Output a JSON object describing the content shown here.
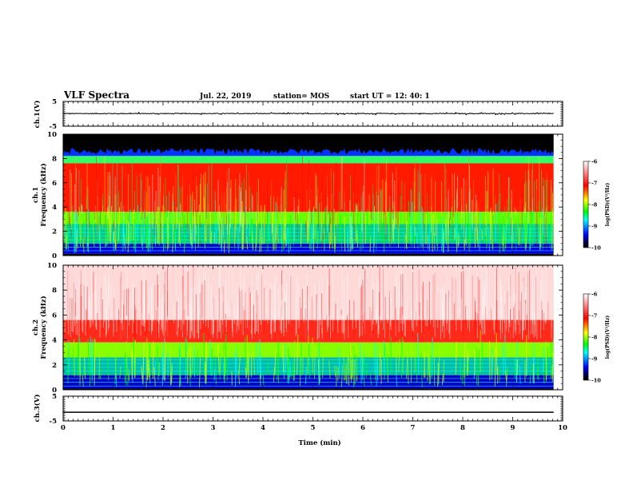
{
  "header": {
    "title": "VLF Spectra",
    "date": "Jul. 22, 2019",
    "station": "station= MOS",
    "start_ut": "start UT =  12: 40: 1"
  },
  "chart_data": [
    {
      "type": "line",
      "name": "ch1-waveform",
      "ylabel": "ch.1(V)",
      "ylim": [
        -5,
        5
      ],
      "yticks": [
        "5",
        "-5"
      ],
      "note": "near-constant trace slightly above zero",
      "level": 0.1
    },
    {
      "type": "heatmap",
      "name": "ch1-spectrogram",
      "ylabel": "ch.1",
      "ylabel2": "Frequency (kHz)",
      "ylim": [
        0,
        10
      ],
      "yticks": [
        "0",
        "2",
        "4",
        "6",
        "8",
        "10"
      ],
      "colorbar": {
        "label": "log(PSD)(V²/Hz)",
        "range": [
          -10,
          -6
        ],
        "ticks": [
          "-6",
          "-7",
          "-8",
          "-9",
          "-10"
        ]
      }
    },
    {
      "type": "heatmap",
      "name": "ch2-spectrogram",
      "ylabel": "ch.2",
      "ylabel2": "Frequency (kHz)",
      "ylim": [
        0,
        10
      ],
      "yticks": [
        "0",
        "2",
        "4",
        "6",
        "8",
        "10"
      ],
      "colorbar": {
        "label": "log(PSD)(V²/Hz)",
        "range": [
          -10,
          -6
        ],
        "ticks": [
          "-6",
          "-7",
          "-8",
          "-9",
          "-10"
        ]
      }
    },
    {
      "type": "line",
      "name": "ch3-waveform",
      "ylabel": "ch.3(V)",
      "ylim": [
        -5,
        5
      ],
      "yticks": [
        "5",
        "-5"
      ],
      "level": -1.5
    }
  ],
  "xaxis": {
    "label": "Time (min)",
    "range": [
      0,
      10
    ],
    "ticks": [
      "0",
      "1",
      "2",
      "3",
      "4",
      "5",
      "6",
      "7",
      "8",
      "9",
      "10"
    ],
    "data_end": 9.82
  },
  "colors": {
    "black": "#000000",
    "blue": "#0000ff",
    "cyan": "#00ffff",
    "green": "#00ff00",
    "yellow": "#ffff00",
    "red": "#ff0000",
    "white": "#ffffff"
  }
}
